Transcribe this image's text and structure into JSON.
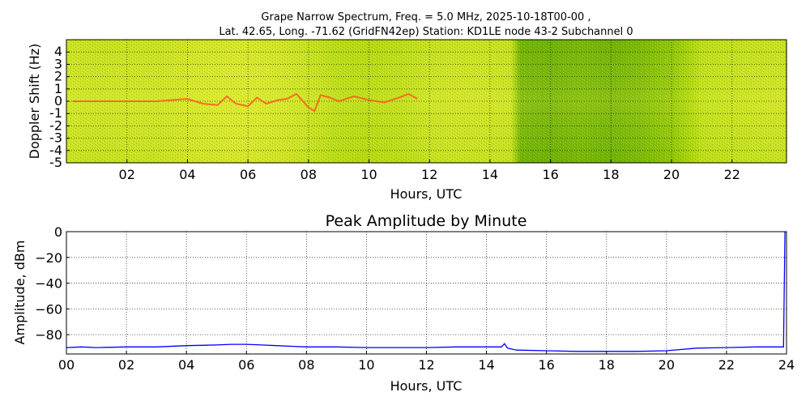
{
  "chart_data": [
    {
      "type": "heatmap",
      "title": "Grape Narrow Spectrum, Freq. = 5.0 MHz, 2025-10-18T00-00 ,",
      "subtitle": "Lat.  42.65, Long. -71.62 (GridFN42ep) Station: KD1LE node 43-2 Subchannel 0",
      "xlabel": "Hours, UTC",
      "ylabel": "Doppler Shift (Hz)",
      "xlim": [
        0,
        23.8
      ],
      "ylim": [
        -5,
        5
      ],
      "x_ticks": [
        2,
        4,
        6,
        8,
        10,
        12,
        14,
        16,
        18,
        20,
        22
      ],
      "x_tick_labels": [
        "02",
        "04",
        "06",
        "08",
        "10",
        "12",
        "14",
        "16",
        "18",
        "20",
        "22"
      ],
      "y_ticks": [
        4,
        3,
        2,
        1,
        0,
        -1,
        -2,
        -3,
        -4,
        -5
      ],
      "y_tick_labels": [
        "4",
        "3",
        "2",
        "1",
        "0",
        "-1",
        "-2",
        "-3",
        "-4",
        "-5"
      ],
      "grid": true,
      "colors": {
        "low": "#2f8a00",
        "mid": "#a6d400",
        "high": "#f2f23a",
        "trace": "#ff5a1e"
      },
      "signal_trace": {
        "x": [
          0.2,
          1.0,
          2.0,
          3.0,
          3.5,
          4.0,
          4.5,
          5.0,
          5.3,
          5.6,
          6.0,
          6.3,
          6.6,
          7.0,
          7.3,
          7.6,
          8.0,
          8.2,
          8.4,
          8.7,
          9.0,
          9.5,
          10.0,
          10.5,
          11.0,
          11.3,
          11.6
        ],
        "y": [
          0.0,
          0.0,
          0.0,
          0.0,
          0.1,
          0.2,
          -0.2,
          -0.3,
          0.4,
          -0.2,
          -0.4,
          0.3,
          -0.2,
          0.1,
          0.2,
          0.6,
          -0.5,
          -0.8,
          0.5,
          0.3,
          0.0,
          0.4,
          0.1,
          -0.1,
          0.3,
          0.6,
          0.2
        ]
      },
      "intensity_by_hour": {
        "x": [
          0,
          1,
          2,
          3,
          4,
          5,
          6,
          7,
          8,
          9,
          10,
          11,
          12,
          13,
          14,
          14.7,
          15,
          16,
          17,
          18,
          19,
          20,
          20.7,
          21,
          22,
          23,
          23.8
        ],
        "level": [
          0.75,
          0.72,
          0.74,
          0.73,
          0.78,
          0.8,
          0.82,
          0.78,
          0.72,
          0.62,
          0.6,
          0.64,
          0.72,
          0.74,
          0.73,
          0.72,
          0.28,
          0.26,
          0.3,
          0.27,
          0.32,
          0.4,
          0.55,
          0.66,
          0.7,
          0.72,
          0.74
        ]
      }
    },
    {
      "type": "line",
      "title": "Peak Amplitude by Minute",
      "xlabel": "Hours, UTC",
      "ylabel": "Amplitude, dBm",
      "xlim": [
        0,
        24
      ],
      "ylim": [
        -95,
        0
      ],
      "x_ticks": [
        0,
        2,
        4,
        6,
        8,
        10,
        12,
        14,
        16,
        18,
        20,
        22,
        24
      ],
      "x_tick_labels": [
        "00",
        "02",
        "04",
        "06",
        "08",
        "10",
        "12",
        "14",
        "16",
        "18",
        "20",
        "22",
        "24"
      ],
      "y_ticks": [
        0,
        -20,
        -40,
        -60,
        -80
      ],
      "y_tick_labels": [
        "0",
        "−20",
        "−40",
        "−60",
        "−80"
      ],
      "grid": true,
      "line_color": "#0000ff",
      "series": [
        {
          "x": [
            0,
            0.5,
            1,
            2,
            3,
            4,
            5,
            5.5,
            6,
            6.5,
            7,
            7.5,
            8,
            9,
            10,
            11,
            12,
            13,
            14,
            14.5,
            14.6,
            14.7,
            15,
            16,
            17,
            18,
            19,
            20,
            21,
            22,
            23,
            23.9,
            23.95,
            24
          ],
          "y": [
            -90,
            -89.5,
            -90,
            -89.5,
            -89.5,
            -88.5,
            -88,
            -87.5,
            -87.5,
            -88,
            -88.5,
            -89,
            -89.5,
            -89.5,
            -90,
            -90,
            -90,
            -89.5,
            -89.5,
            -89.5,
            -87,
            -90.5,
            -92,
            -92.5,
            -93,
            -93,
            -93,
            -92.5,
            -90.5,
            -90,
            -89.5,
            -89.5,
            0,
            0
          ]
        }
      ]
    }
  ]
}
